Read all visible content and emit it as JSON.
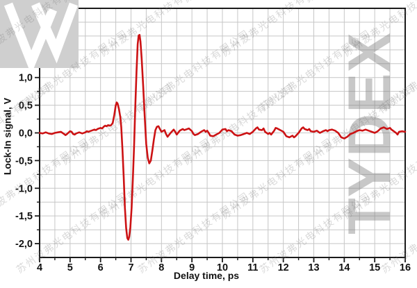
{
  "watermark": {
    "text": "苏州波弗光电科技有限公司",
    "logo_text": "TYDEX",
    "text_color": "rgba(120,120,120,0.28)",
    "logo_color": "rgba(125,125,125,0.42)",
    "logo_block_color": "#cfcfcf"
  },
  "chart_data": {
    "type": "line",
    "title": "",
    "xlabel": "Delay time, ps",
    "ylabel": "Lock-In signal, V",
    "xlim": [
      4,
      16
    ],
    "ylim": [
      -2.25,
      2.25
    ],
    "grid": {
      "x_step": 0.5,
      "y_step": 0.25,
      "color": "#c6c6c6",
      "on": true
    },
    "axis_color": "#1a1a1a",
    "line_color": "#cc1214",
    "legend": null,
    "x_tick_values": [
      4,
      5,
      6,
      7,
      8,
      9,
      10,
      11,
      12,
      13,
      14,
      15,
      16
    ],
    "x_tick_labels": [
      "4",
      "5",
      "6",
      "7",
      "8",
      "9",
      "10",
      "11",
      "12",
      "13",
      "14",
      "15",
      "16"
    ],
    "x_minor_step": 0.5,
    "y_tick_values": [
      2.0,
      1.5,
      1.0,
      0.5,
      0.0,
      -0.5,
      -1.0,
      -1.5,
      -2.0
    ],
    "y_tick_labels": [
      "2,0",
      "1,5",
      "1,0",
      "0,5",
      "0,0",
      "-0,5",
      "-1,0",
      "-1,5",
      "-2,0"
    ],
    "y_minor_step": 0.25,
    "series": [
      {
        "name": "Lock-In signal",
        "points": [
          [
            4.0,
            0.0
          ],
          [
            4.1,
            -0.01
          ],
          [
            4.2,
            0.01
          ],
          [
            4.3,
            -0.01
          ],
          [
            4.4,
            -0.02
          ],
          [
            4.5,
            0.0
          ],
          [
            4.6,
            0.01
          ],
          [
            4.7,
            0.02
          ],
          [
            4.8,
            -0.02
          ],
          [
            4.85,
            -0.04
          ],
          [
            4.9,
            -0.02
          ],
          [
            5.0,
            0.03
          ],
          [
            5.05,
            0.02
          ],
          [
            5.1,
            -0.02
          ],
          [
            5.15,
            -0.03
          ],
          [
            5.2,
            -0.01
          ],
          [
            5.3,
            0.01
          ],
          [
            5.4,
            -0.01
          ],
          [
            5.5,
            0.01
          ],
          [
            5.55,
            0.03
          ],
          [
            5.6,
            0.02
          ],
          [
            5.7,
            0.04
          ],
          [
            5.8,
            0.06
          ],
          [
            5.85,
            0.05
          ],
          [
            5.9,
            0.07
          ],
          [
            6.0,
            0.09
          ],
          [
            6.05,
            0.08
          ],
          [
            6.1,
            0.11
          ],
          [
            6.15,
            0.13
          ],
          [
            6.2,
            0.12
          ],
          [
            6.25,
            0.14
          ],
          [
            6.3,
            0.13
          ],
          [
            6.35,
            0.14
          ],
          [
            6.4,
            0.18
          ],
          [
            6.45,
            0.32
          ],
          [
            6.5,
            0.5
          ],
          [
            6.53,
            0.55
          ],
          [
            6.56,
            0.53
          ],
          [
            6.6,
            0.44
          ],
          [
            6.65,
            0.28
          ],
          [
            6.68,
            0.1
          ],
          [
            6.72,
            -0.3
          ],
          [
            6.76,
            -0.8
          ],
          [
            6.8,
            -1.35
          ],
          [
            6.84,
            -1.72
          ],
          [
            6.88,
            -1.9
          ],
          [
            6.91,
            -1.93
          ],
          [
            6.94,
            -1.88
          ],
          [
            6.98,
            -1.7
          ],
          [
            7.02,
            -1.35
          ],
          [
            7.06,
            -0.85
          ],
          [
            7.1,
            -0.25
          ],
          [
            7.14,
            0.45
          ],
          [
            7.18,
            1.1
          ],
          [
            7.22,
            1.6
          ],
          [
            7.25,
            1.76
          ],
          [
            7.28,
            1.77
          ],
          [
            7.31,
            1.65
          ],
          [
            7.35,
            1.35
          ],
          [
            7.4,
            0.85
          ],
          [
            7.45,
            0.3
          ],
          [
            7.5,
            -0.2
          ],
          [
            7.55,
            -0.45
          ],
          [
            7.6,
            -0.55
          ],
          [
            7.65,
            -0.5
          ],
          [
            7.7,
            -0.32
          ],
          [
            7.75,
            -0.12
          ],
          [
            7.8,
            0.05
          ],
          [
            7.85,
            0.11
          ],
          [
            7.9,
            0.12
          ],
          [
            7.95,
            0.07
          ],
          [
            8.0,
            0.02
          ],
          [
            8.1,
            0.05
          ],
          [
            8.15,
            -0.02
          ],
          [
            8.2,
            -0.07
          ],
          [
            8.3,
            0.0
          ],
          [
            8.4,
            0.06
          ],
          [
            8.45,
            0.02
          ],
          [
            8.5,
            -0.03
          ],
          [
            8.6,
            0.04
          ],
          [
            8.7,
            0.07
          ],
          [
            8.75,
            0.05
          ],
          [
            8.8,
            0.06
          ],
          [
            8.9,
            0.08
          ],
          [
            9.0,
            0.03
          ],
          [
            9.05,
            -0.02
          ],
          [
            9.1,
            -0.04
          ],
          [
            9.2,
            -0.02
          ],
          [
            9.3,
            0.02
          ],
          [
            9.4,
            0.05
          ],
          [
            9.45,
            0.02
          ],
          [
            9.5,
            0.04
          ],
          [
            9.55,
            0.0
          ],
          [
            9.6,
            -0.05
          ],
          [
            9.7,
            -0.06
          ],
          [
            9.8,
            -0.03
          ],
          [
            9.9,
            0.0
          ],
          [
            10.0,
            0.06
          ],
          [
            10.1,
            0.07
          ],
          [
            10.15,
            0.03
          ],
          [
            10.2,
            0.05
          ],
          [
            10.3,
            0.03
          ],
          [
            10.4,
            -0.03
          ],
          [
            10.5,
            -0.05
          ],
          [
            10.6,
            -0.04
          ],
          [
            10.7,
            -0.02
          ],
          [
            10.8,
            0.0
          ],
          [
            10.9,
            -0.02
          ],
          [
            11.0,
            0.02
          ],
          [
            11.1,
            0.08
          ],
          [
            11.15,
            0.1
          ],
          [
            11.2,
            0.06
          ],
          [
            11.3,
            0.05
          ],
          [
            11.35,
            0.08
          ],
          [
            11.4,
            0.02
          ],
          [
            11.5,
            -0.02
          ],
          [
            11.55,
            0.0
          ],
          [
            11.6,
            -0.03
          ],
          [
            11.7,
            0.04
          ],
          [
            11.75,
            0.09
          ],
          [
            11.8,
            0.08
          ],
          [
            11.9,
            0.05
          ],
          [
            12.0,
            0.02
          ],
          [
            12.1,
            -0.06
          ],
          [
            12.2,
            -0.08
          ],
          [
            12.3,
            -0.05
          ],
          [
            12.35,
            -0.08
          ],
          [
            12.4,
            -0.06
          ],
          [
            12.5,
            0.0
          ],
          [
            12.6,
            0.08
          ],
          [
            12.65,
            0.1
          ],
          [
            12.7,
            0.07
          ],
          [
            12.8,
            0.05
          ],
          [
            12.85,
            0.07
          ],
          [
            12.9,
            0.03
          ],
          [
            13.0,
            0.02
          ],
          [
            13.1,
            0.04
          ],
          [
            13.2,
            0.0
          ],
          [
            13.3,
            0.03
          ],
          [
            13.4,
            0.05
          ],
          [
            13.45,
            0.03
          ],
          [
            13.5,
            0.05
          ],
          [
            13.6,
            0.06
          ],
          [
            13.7,
            0.04
          ],
          [
            13.8,
            0.0
          ],
          [
            13.9,
            -0.08
          ],
          [
            14.0,
            -0.1
          ],
          [
            14.1,
            -0.07
          ],
          [
            14.2,
            -0.02
          ],
          [
            14.3,
            0.0
          ],
          [
            14.4,
            0.03
          ],
          [
            14.5,
            0.05
          ],
          [
            14.6,
            0.04
          ],
          [
            14.7,
            0.06
          ],
          [
            14.8,
            0.04
          ],
          [
            14.9,
            0.02
          ],
          [
            15.0,
            0.0
          ],
          [
            15.1,
            0.03
          ],
          [
            15.2,
            0.08
          ],
          [
            15.3,
            0.1
          ],
          [
            15.4,
            0.07
          ],
          [
            15.5,
            0.09
          ],
          [
            15.55,
            0.06
          ],
          [
            15.6,
            0.04
          ],
          [
            15.7,
            0.0
          ],
          [
            15.75,
            -0.03
          ],
          [
            15.8,
            0.02
          ],
          [
            15.9,
            0.03
          ],
          [
            16.0,
            0.02
          ]
        ]
      }
    ]
  }
}
